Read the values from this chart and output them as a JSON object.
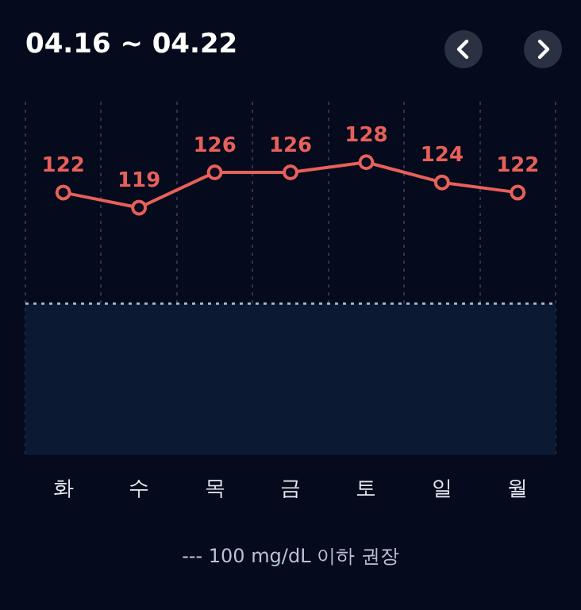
{
  "chart_data": {
    "type": "line",
    "title": "04.16 ~ 04.22",
    "categories": [
      "화",
      "수",
      "목",
      "금",
      "토",
      "일",
      "월"
    ],
    "series": [
      {
        "color": "#e8605a",
        "values": [
          122,
          119,
          126,
          126,
          128,
          124,
          122
        ]
      }
    ],
    "data_labels": true,
    "marker": "circle",
    "line_style": "solid",
    "ylim": [
      70,
      140
    ],
    "tick_labels": "x",
    "grid": "x",
    "legend": false,
    "ref_lines": [
      {
        "axis": "y",
        "value": 100,
        "color": "#9fb4d0",
        "line_style": "dotted"
      }
    ],
    "bands": [
      {
        "axis": "y",
        "from": 70,
        "to": 100,
        "color": "#0b1a32"
      }
    ],
    "annotations": [
      "--- 100 mg/dL 이하 권장"
    ]
  }
}
